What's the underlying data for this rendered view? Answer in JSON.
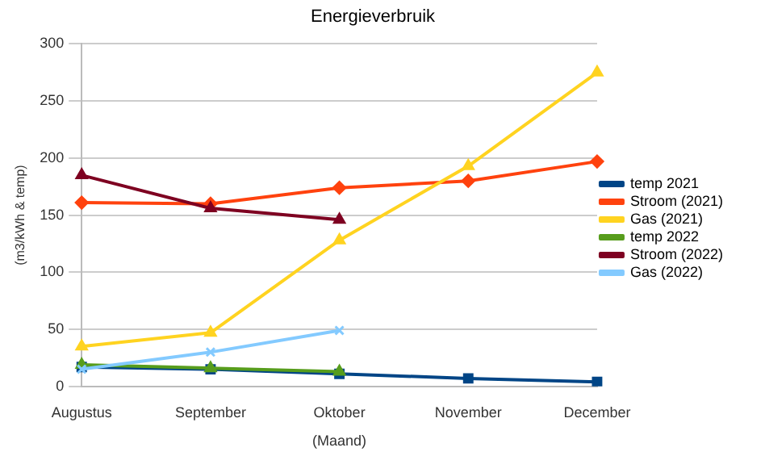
{
  "chart_data": {
    "type": "line",
    "title": "Energieverbruik",
    "xlabel": "(Maand)",
    "ylabel": "(m3/kWh & temp)",
    "categories": [
      "Augustus",
      "September",
      "Oktober",
      "November",
      "December"
    ],
    "series": [
      {
        "name": "temp 2021",
        "color": "#004586",
        "marker": "square",
        "values": [
          17,
          15,
          11,
          7,
          4
        ]
      },
      {
        "name": "Stroom (2021)",
        "color": "#ff420e",
        "marker": "diamond",
        "values": [
          161,
          160,
          174,
          180,
          197
        ]
      },
      {
        "name": "Gas (2021)",
        "color": "#ffd320",
        "marker": "triangle",
        "values": [
          35,
          47,
          128,
          193,
          275
        ]
      },
      {
        "name": "temp 2022",
        "color": "#579d1c",
        "marker": "triangle",
        "values": [
          19,
          16,
          13,
          null,
          null
        ]
      },
      {
        "name": "Stroom (2022)",
        "color": "#7e0021",
        "marker": "triangle",
        "values": [
          185,
          156,
          146,
          null,
          null
        ]
      },
      {
        "name": "Gas (2022)",
        "color": "#83caff",
        "marker": "cross",
        "values": [
          15,
          30,
          49,
          null,
          null
        ]
      }
    ],
    "ylim": [
      0,
      300
    ],
    "yticks": [
      0,
      50,
      100,
      150,
      200,
      250,
      300
    ],
    "grid": "y",
    "legend": "right",
    "line_style": "solid"
  }
}
